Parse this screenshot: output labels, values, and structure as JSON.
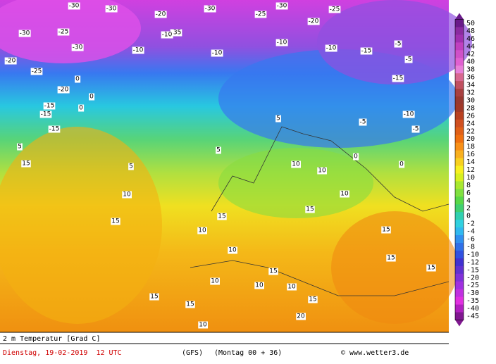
{
  "map": {
    "labels": [
      "-30",
      "-30",
      "-20",
      "-35",
      "-30",
      "-30",
      "-25",
      "-20",
      "-25",
      "-30",
      "-25",
      "-30",
      "-20",
      "-25",
      "-20",
      "0",
      "0",
      "0",
      "-15",
      "-15",
      "-15",
      "5",
      "15",
      "5",
      "10",
      "15",
      "10",
      "10",
      "15",
      "15",
      "10",
      "20",
      "-10",
      "-10",
      "-15",
      "-5",
      "-5",
      "-15",
      "-10",
      "-5",
      "-5",
      "0",
      "0",
      "5",
      "5",
      "10",
      "10",
      "10",
      "15",
      "15",
      "15",
      "15",
      "15",
      "10",
      "10",
      "15",
      "10",
      "15",
      "-10",
      "-10",
      "-10"
    ]
  },
  "legend": {
    "labels": [
      "50",
      "48",
      "46",
      "44",
      "42",
      "40",
      "38",
      "36",
      "34",
      "32",
      "30",
      "28",
      "26",
      "24",
      "22",
      "20",
      "18",
      "16",
      "14",
      "12",
      "10",
      "8",
      "6",
      "4",
      "2",
      "0",
      "-2",
      "-4",
      "-6",
      "-8",
      "-10",
      "-12",
      "-15",
      "-20",
      "-25",
      "-30",
      "-35",
      "-40",
      "-45"
    ],
    "colors": [
      "#6a1a8a",
      "#8a2aa0",
      "#a030b0",
      "#c040c0",
      "#d050c8",
      "#e060d0",
      "#e880d8",
      "#d86890",
      "#c05060",
      "#a84040",
      "#983830",
      "#a03828",
      "#b84020",
      "#d05020",
      "#e06018",
      "#f07010",
      "#f89018",
      "#f8b020",
      "#f8d020",
      "#f8f020",
      "#d8f020",
      "#a8e830",
      "#80e040",
      "#58d848",
      "#40d070",
      "#30d0b0",
      "#30d0e0",
      "#30b8f0",
      "#3090f0",
      "#3070e8",
      "#3050e0",
      "#4030d0",
      "#6030d0",
      "#8030d8",
      "#a030e0",
      "#c030e0",
      "#e030e0",
      "#b020c0",
      "#801890"
    ]
  },
  "footer": {
    "title": "2 m Temperatur [Grad C]",
    "date": "Dienstag, 19-02-2019  12 UTC",
    "model": "(GFS)",
    "run": "(Montag 00 + 36)",
    "credit": "© www.wetter3.de"
  }
}
